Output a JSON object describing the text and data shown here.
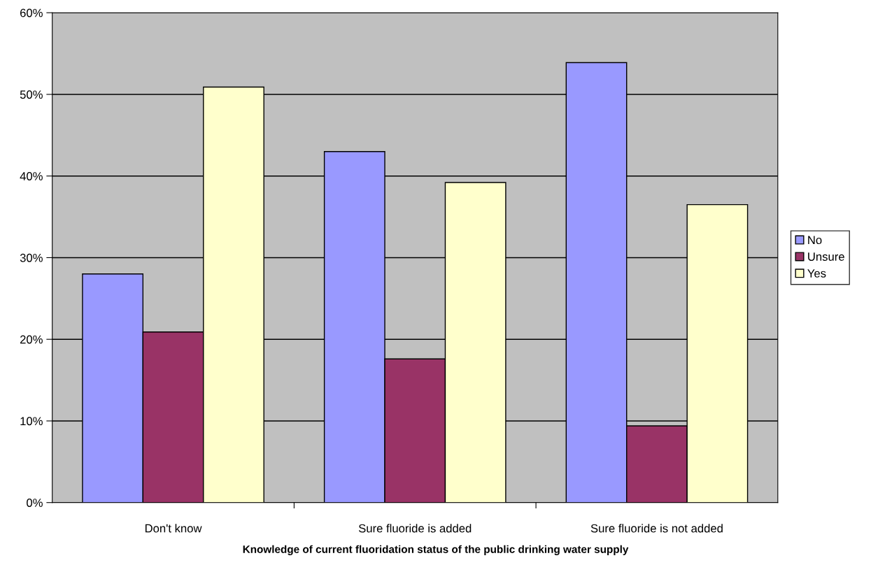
{
  "chart_data": {
    "type": "bar",
    "xlabel": "Knowledge of current fluoridation status of the public drinking water supply",
    "categories": [
      "Don't know",
      "Sure fluoride is added",
      "Sure fluoride is not added"
    ],
    "series": [
      {
        "name": "No",
        "color": "#9999ff",
        "values": [
          28.0,
          43.0,
          53.9
        ]
      },
      {
        "name": "Unsure",
        "color": "#993366",
        "values": [
          20.9,
          17.6,
          9.4
        ]
      },
      {
        "name": "Yes",
        "color": "#ffffcc",
        "values": [
          50.9,
          39.2,
          36.5
        ]
      }
    ],
    "ylim": [
      0,
      60
    ],
    "yticks": [
      {
        "value": 0,
        "label": "0%"
      },
      {
        "value": 10,
        "label": "10%"
      },
      {
        "value": 20,
        "label": "20%"
      },
      {
        "value": 30,
        "label": "30%"
      },
      {
        "value": 40,
        "label": "40%"
      },
      {
        "value": 50,
        "label": "50%"
      },
      {
        "value": 60,
        "label": "60%"
      }
    ],
    "grid": "y",
    "legend": "right"
  }
}
